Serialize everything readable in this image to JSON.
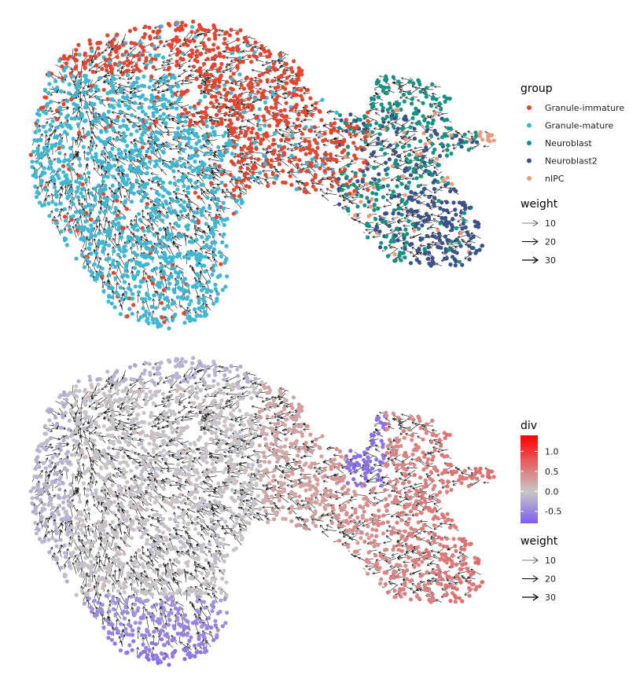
{
  "chart_data": [
    {
      "type": "scatter",
      "description_role": "embedding colored by group with velocity arrows",
      "color_by": "group",
      "legend": {
        "title": "group",
        "position": "right",
        "items": [
          {
            "label": "Granule-immature",
            "color": "#e8432d"
          },
          {
            "label": "Granule-mature",
            "color": "#3db7d2"
          },
          {
            "label": "Neuroblast",
            "color": "#0f9484"
          },
          {
            "label": "Neuroblast2",
            "color": "#3b5289"
          },
          {
            "label": "nIPC",
            "color": "#f09a7c"
          }
        ]
      },
      "weight_legend": {
        "title": "weight",
        "items": [
          {
            "label": "10",
            "value": 10
          },
          {
            "label": "20",
            "value": 20
          },
          {
            "label": "30",
            "value": 30
          }
        ]
      },
      "grid": false,
      "axes": false
    },
    {
      "type": "scatter",
      "description_role": "embedding colored by div with velocity arrows",
      "color_by": "div",
      "colorbar": {
        "title": "div",
        "position": "right",
        "range": [
          -0.8,
          1.4
        ],
        "ticks": [
          {
            "label": "1.0",
            "value": 1.0
          },
          {
            "label": "0.5",
            "value": 0.5
          },
          {
            "label": "0.0",
            "value": 0.0
          },
          {
            "label": "-0.5",
            "value": -0.5
          }
        ],
        "colors": {
          "low": "#7b5cf0",
          "mid": "#c8c8c8",
          "high": "#ff0000"
        }
      },
      "weight_legend": {
        "title": "weight",
        "items": [
          {
            "label": "10",
            "value": 10
          },
          {
            "label": "20",
            "value": 20
          },
          {
            "label": "30",
            "value": 30
          }
        ]
      },
      "grid": false,
      "axes": false
    }
  ]
}
